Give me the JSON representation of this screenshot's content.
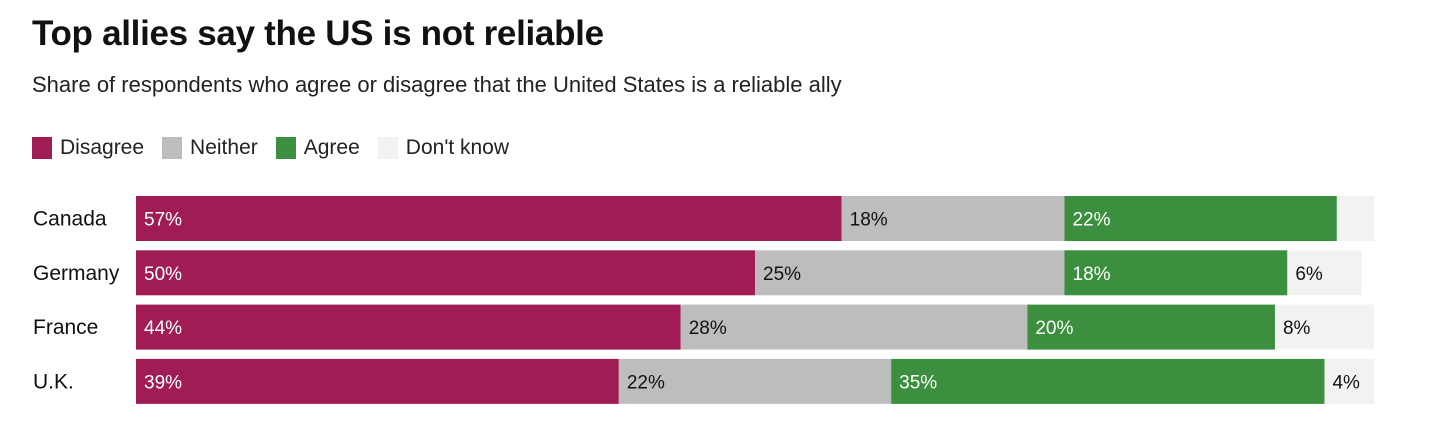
{
  "chart_data": {
    "type": "bar",
    "orientation": "horizontal",
    "stacked": true,
    "title": "Top allies say the US is not reliable",
    "subtitle": "Share of respondents who agree or disagree that the United States is a reliable ally",
    "categories": [
      "Canada",
      "Germany",
      "France",
      "U.K."
    ],
    "series": [
      {
        "name": "Disagree",
        "color": "#a01c55",
        "label_color": "#ffffff",
        "values": [
          57,
          50,
          44,
          39
        ]
      },
      {
        "name": "Neither",
        "color": "#bdbdbd",
        "label_color": "#111111",
        "values": [
          18,
          25,
          28,
          22
        ]
      },
      {
        "name": "Agree",
        "color": "#3b8f3e",
        "label_color": "#ffffff",
        "values": [
          22,
          18,
          20,
          35
        ]
      },
      {
        "name": "Don't know",
        "color": "#f2f2f2",
        "label_color": "#111111",
        "values": [
          3,
          6,
          8,
          4
        ],
        "labels_shown": [
          false,
          true,
          true,
          true
        ]
      }
    ],
    "value_suffix": "%",
    "xlim": [
      0,
      100
    ],
    "legend_position": "top-left"
  }
}
